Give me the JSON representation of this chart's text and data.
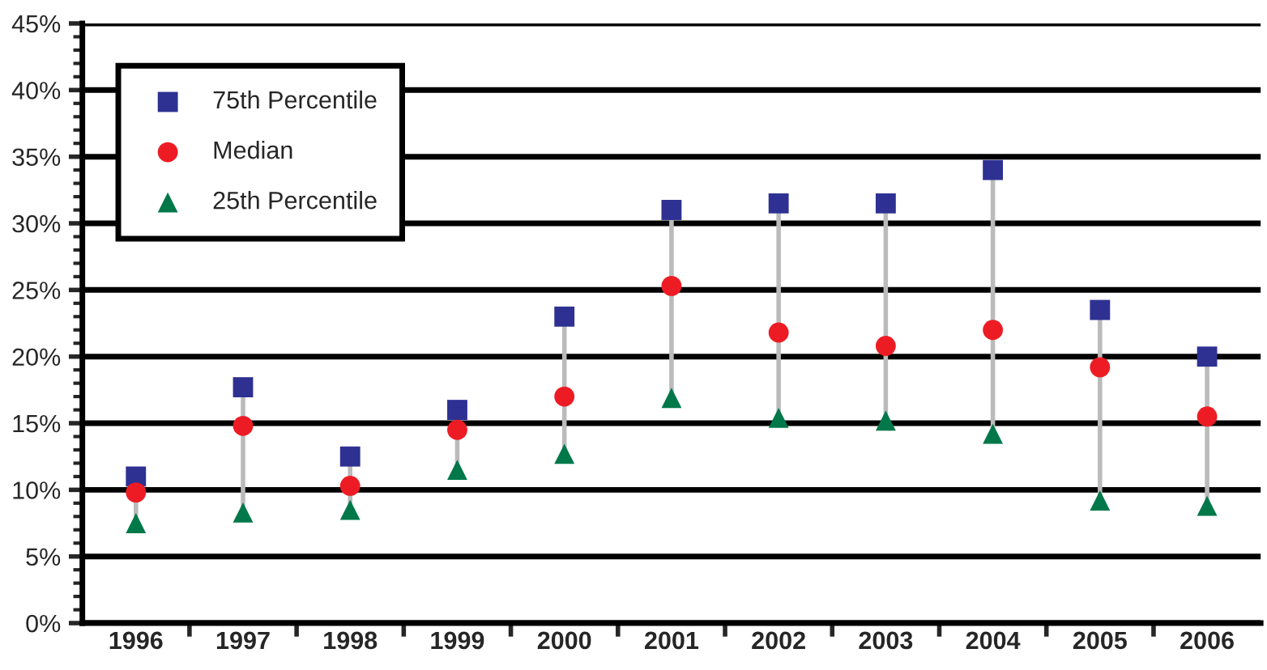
{
  "chart_data": {
    "type": "scatter",
    "categories": [
      "1996",
      "1997",
      "1998",
      "1999",
      "2000",
      "2001",
      "2002",
      "2003",
      "2004",
      "2005",
      "2006"
    ],
    "series": [
      {
        "name": "75th Percentile",
        "color": "#2e3192",
        "marker": "square",
        "values": [
          11,
          17.7,
          12.5,
          16,
          23,
          31,
          31.5,
          31.5,
          34,
          23.5,
          20
        ]
      },
      {
        "name": "Median",
        "color": "#ed1c24",
        "marker": "circle",
        "values": [
          9.8,
          14.8,
          10.3,
          14.5,
          17,
          25.3,
          21.8,
          20.8,
          22,
          19.2,
          15.5
        ]
      },
      {
        "name": "25th Percentile",
        "color": "#00784a",
        "marker": "triangle",
        "values": [
          7.5,
          8.3,
          8.5,
          11.5,
          12.7,
          16.9,
          15.4,
          15.2,
          14.2,
          9.2,
          8.8
        ]
      }
    ],
    "ylim": [
      0,
      45
    ],
    "yticks": [
      {
        "value": 0,
        "label": "0%"
      },
      {
        "value": 5,
        "label": "5%"
      },
      {
        "value": 10,
        "label": "10%"
      },
      {
        "value": 15,
        "label": "15%"
      },
      {
        "value": 20,
        "label": "20%"
      },
      {
        "value": 25,
        "label": "25%"
      },
      {
        "value": 30,
        "label": "30%"
      },
      {
        "value": 35,
        "label": "35%"
      },
      {
        "value": 40,
        "label": "40%"
      },
      {
        "value": 45,
        "label": "45%"
      }
    ],
    "grid": "y",
    "legend": "top left"
  }
}
